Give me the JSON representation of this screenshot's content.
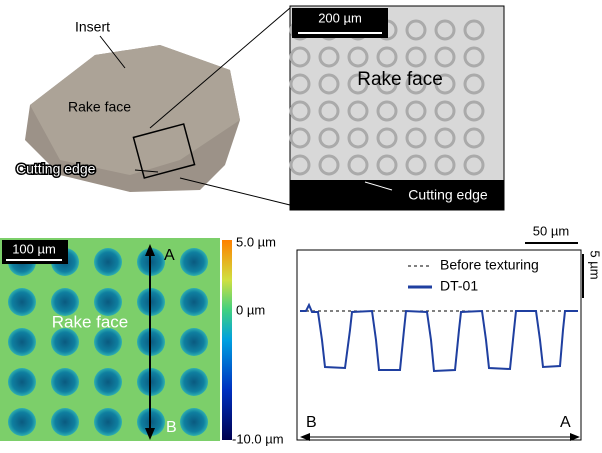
{
  "insert_photo": {
    "insert": "Insert",
    "rake_face": "Rake face",
    "cutting_edge": "Cutting edge"
  },
  "micrograph": {
    "scale": "200 µm",
    "rake_face": "Rake face",
    "cutting_edge": "Cutting edge"
  },
  "height_map": {
    "scale": "100 µm",
    "top": "A",
    "bottom": "B",
    "rake_face": "Rake face",
    "colorbar": {
      "max": "5.0 µm",
      "mid": "0 µm",
      "min": "-10.0 µm"
    }
  },
  "profile": {
    "x_scale": "50 µm",
    "y_scale": "5 µm",
    "legend": {
      "before": "Before texturing",
      "after": "DT-01"
    },
    "left": "B",
    "right": "A"
  }
}
